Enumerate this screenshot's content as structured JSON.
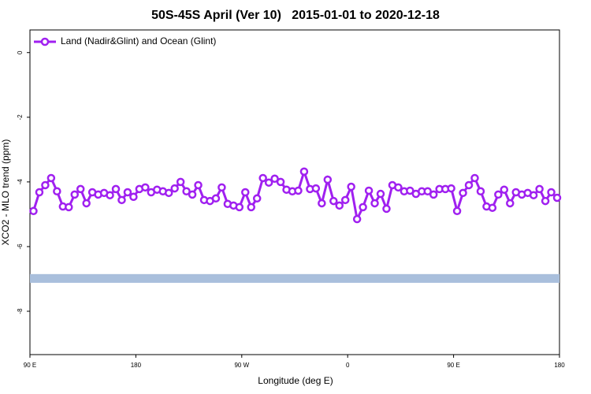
{
  "chart_data": {
    "type": "line",
    "title": "50S-45S April (Ver 10)   2015-01-01 to 2020-12-18",
    "x_label": "Longitude (deg E)",
    "y_label": "XCO2 - MLO trend (ppm)",
    "xlim": [
      90,
      540
    ],
    "xticks": [
      {
        "value": 90,
        "label": "90 E"
      },
      {
        "value": 180,
        "label": "180"
      },
      {
        "value": 270,
        "label": "90 W"
      },
      {
        "value": 360,
        "label": "0"
      },
      {
        "value": 450,
        "label": "90 E"
      },
      {
        "value": 540,
        "label": "180"
      }
    ],
    "ylim": [
      -9.34,
      0.7
    ],
    "yticks": [
      0,
      -2,
      -4,
      -6,
      -8
    ],
    "legend": "top-left",
    "band": {
      "color": "#a9bfdc",
      "range": [
        -7.12,
        -6.85
      ]
    },
    "x": [
      93,
      98,
      103,
      108,
      113,
      118,
      123,
      128,
      133,
      138,
      143,
      148,
      153,
      158,
      163,
      168,
      173,
      178,
      183,
      188,
      193,
      198,
      203,
      208,
      213,
      218,
      223,
      228,
      233,
      238,
      243,
      248,
      253,
      258,
      263,
      268,
      273,
      278,
      283,
      288,
      293,
      298,
      303,
      308,
      313,
      318,
      323,
      328,
      333,
      338,
      343,
      348,
      353,
      358,
      363,
      368,
      373,
      378,
      383,
      388,
      393,
      398,
      403,
      408,
      413,
      418,
      423,
      428,
      433,
      438,
      443,
      448,
      453,
      458,
      463,
      468,
      473,
      478,
      483,
      488,
      493,
      498,
      503,
      508,
      513,
      518,
      523,
      528,
      533,
      538
    ],
    "series": [
      {
        "name": "Land (Nadir&Glint) and Ocean (Glint)",
        "color": "#a020f0",
        "values": [
          -4.9,
          -4.32,
          -4.1,
          -3.88,
          -4.29,
          -4.76,
          -4.78,
          -4.39,
          -4.22,
          -4.66,
          -4.32,
          -4.39,
          -4.34,
          -4.41,
          -4.22,
          -4.56,
          -4.32,
          -4.46,
          -4.22,
          -4.17,
          -4.32,
          -4.24,
          -4.29,
          -4.34,
          -4.2,
          -4.0,
          -4.29,
          -4.39,
          -4.1,
          -4.56,
          -4.59,
          -4.51,
          -4.17,
          -4.68,
          -4.73,
          -4.78,
          -4.32,
          -4.78,
          -4.51,
          -3.88,
          -4.02,
          -3.9,
          -4.0,
          -4.24,
          -4.29,
          -4.27,
          -3.68,
          -4.22,
          -4.2,
          -4.66,
          -3.93,
          -4.59,
          -4.73,
          -4.56,
          -4.15,
          -5.15,
          -4.78,
          -4.27,
          -4.66,
          -4.37,
          -4.83,
          -4.1,
          -4.17,
          -4.29,
          -4.27,
          -4.37,
          -4.29,
          -4.29,
          -4.39,
          -4.22,
          -4.22,
          -4.2,
          -4.9,
          -4.34,
          -4.1,
          -3.88,
          -4.29,
          -4.76,
          -4.8,
          -4.39,
          -4.24,
          -4.66,
          -4.32,
          -4.39,
          -4.34,
          -4.41,
          -4.22,
          -4.59,
          -4.32,
          -4.49
        ]
      }
    ]
  }
}
